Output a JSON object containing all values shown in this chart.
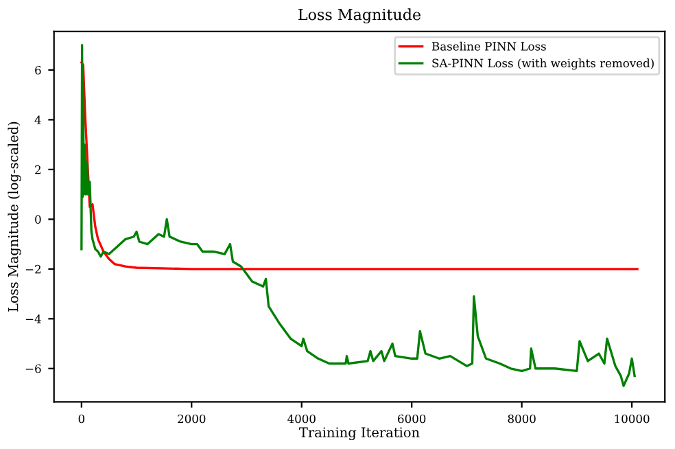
{
  "chart_data": {
    "type": "line",
    "title": "Loss Magnitude",
    "xlabel": "Training Iteration",
    "ylabel": "Loss Magnitude (log-scaled)",
    "xlim": [
      -500,
      10600
    ],
    "ylim": [
      -7.34,
      7.55
    ],
    "xticks": [
      0,
      2000,
      4000,
      6000,
      8000,
      10000
    ],
    "yticks": [
      {
        "value": -6,
        "label": "−6"
      },
      {
        "value": -4,
        "label": "−4"
      },
      {
        "value": -2,
        "label": "−2"
      },
      0,
      2,
      4,
      6
    ],
    "grid": false,
    "legend": "top right",
    "line_style": "solid",
    "marker": "none",
    "series": [
      {
        "name": "Baseline PINN Loss",
        "color": "#ff0000",
        "x": [
          0,
          30,
          70,
          150,
          200,
          250,
          300,
          400,
          500,
          600,
          800,
          1000,
          2000,
          5000,
          10100
        ],
        "values": [
          6.3,
          6.2,
          4.0,
          0.5,
          0.6,
          -0.3,
          -0.8,
          -1.3,
          -1.6,
          -1.8,
          -1.9,
          -1.95,
          -2.0,
          -2.0,
          -2.0
        ]
      },
      {
        "name": "SA-PINN Loss (with weights removed)",
        "color": "#008000",
        "x": [
          0,
          10,
          20,
          30,
          40,
          60,
          80,
          100,
          120,
          150,
          180,
          200,
          250,
          300,
          350,
          400,
          500,
          600,
          800,
          950,
          1000,
          1050,
          1200,
          1400,
          1500,
          1550,
          1600,
          1800,
          2000,
          2100,
          2200,
          2400,
          2600,
          2700,
          2750,
          2900,
          3000,
          3100,
          3300,
          3350,
          3400,
          3600,
          3800,
          4000,
          4030,
          4100,
          4300,
          4500,
          4800,
          4820,
          4850,
          5200,
          5250,
          5300,
          5450,
          5500,
          5650,
          5700,
          6000,
          6100,
          6150,
          6250,
          6500,
          6700,
          7000,
          7100,
          7130,
          7200,
          7350,
          7600,
          7800,
          8000,
          8150,
          8170,
          8250,
          8600,
          9000,
          9050,
          9200,
          9400,
          9500,
          9550,
          9700,
          9800,
          9850,
          9950,
          10000,
          10050
        ],
        "values": [
          -1.2,
          7.0,
          0.9,
          5.5,
          1.0,
          3.0,
          1.0,
          2.3,
          1.0,
          1.5,
          -0.5,
          -0.8,
          -1.2,
          -1.3,
          -1.5,
          -1.3,
          -1.4,
          -1.2,
          -0.8,
          -0.7,
          -0.5,
          -0.9,
          -1.0,
          -0.6,
          -0.7,
          0.0,
          -0.7,
          -0.9,
          -1.0,
          -1.0,
          -1.3,
          -1.3,
          -1.4,
          -1.0,
          -1.7,
          -1.9,
          -2.2,
          -2.5,
          -2.7,
          -2.4,
          -3.5,
          -4.2,
          -4.8,
          -5.1,
          -4.8,
          -5.3,
          -5.6,
          -5.8,
          -5.8,
          -5.5,
          -5.8,
          -5.7,
          -5.3,
          -5.7,
          -5.3,
          -5.7,
          -5.0,
          -5.5,
          -5.6,
          -5.6,
          -4.5,
          -5.4,
          -5.6,
          -5.5,
          -5.9,
          -5.8,
          -3.1,
          -4.7,
          -5.6,
          -5.8,
          -6.0,
          -6.1,
          -6.0,
          -5.2,
          -6.0,
          -6.0,
          -6.1,
          -4.9,
          -5.7,
          -5.4,
          -5.8,
          -4.8,
          -5.9,
          -6.3,
          -6.7,
          -6.2,
          -5.6,
          -6.3
        ]
      }
    ]
  }
}
